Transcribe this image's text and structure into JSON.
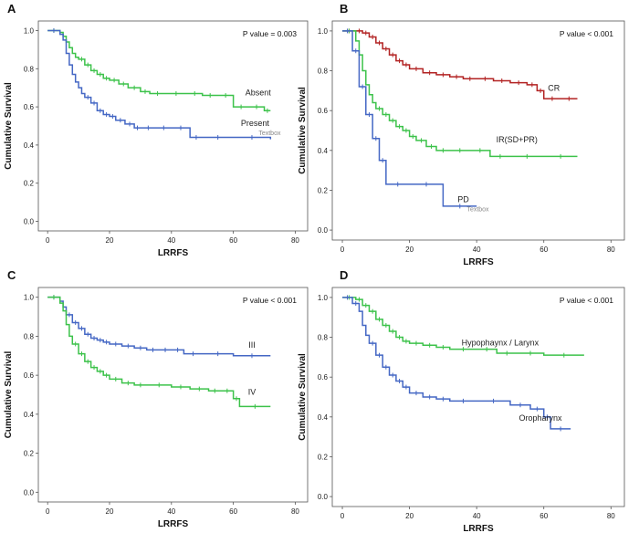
{
  "chart_data": [
    {
      "type": "line",
      "panel": "A",
      "title": "",
      "xlabel": "LRRFS",
      "ylabel": "Cumulative Survival",
      "xlim": [
        -3,
        84
      ],
      "ylim": [
        -0.05,
        1.05
      ],
      "xticks": [
        0,
        20,
        40,
        60,
        80
      ],
      "yticks": [
        "0.0",
        "0.2",
        "0.4",
        "0.6",
        "0.8",
        "1.0"
      ],
      "pvalue": "P value = 0.003",
      "extra_text": "Textbox",
      "series": [
        {
          "name": "Absent",
          "color": "#3cc24a",
          "x": [
            0,
            4,
            5,
            6,
            7,
            8,
            9,
            10,
            12,
            14,
            16,
            18,
            20,
            23,
            26,
            30,
            33,
            38,
            45,
            50,
            55,
            60,
            65,
            70,
            72
          ],
          "y": [
            1.0,
            0.99,
            0.97,
            0.94,
            0.91,
            0.88,
            0.86,
            0.85,
            0.82,
            0.79,
            0.77,
            0.75,
            0.74,
            0.72,
            0.7,
            0.68,
            0.67,
            0.67,
            0.67,
            0.66,
            0.66,
            0.6,
            0.6,
            0.58,
            0.58
          ]
        },
        {
          "name": "Present",
          "color": "#4467c4",
          "x": [
            0,
            4,
            5,
            6,
            7,
            8,
            9,
            10,
            11,
            12,
            14,
            16,
            18,
            20,
            22,
            25,
            28,
            30,
            35,
            40,
            46,
            50,
            60,
            72
          ],
          "y": [
            1.0,
            0.98,
            0.95,
            0.88,
            0.82,
            0.77,
            0.73,
            0.7,
            0.67,
            0.65,
            0.62,
            0.58,
            0.56,
            0.55,
            0.53,
            0.51,
            0.49,
            0.49,
            0.49,
            0.49,
            0.44,
            0.44,
            0.44,
            0.43
          ]
        }
      ],
      "labels": [
        {
          "text": "Absent",
          "x": 68,
          "y": 0.66
        },
        {
          "text": "Present",
          "x": 67,
          "y": 0.5
        }
      ]
    },
    {
      "type": "line",
      "panel": "B",
      "title": "",
      "xlabel": "LRRFS",
      "ylabel": "Cumulative Survival",
      "xlim": [
        -3,
        84
      ],
      "ylim": [
        -0.05,
        1.05
      ],
      "xticks": [
        0,
        20,
        40,
        60,
        80
      ],
      "yticks": [
        "0.0",
        "0.2",
        "0.4",
        "0.6",
        "0.8",
        "1.0"
      ],
      "pvalue": "P value < 0.001",
      "extra_text": "Textbox",
      "series": [
        {
          "name": "CR",
          "color": "#b22222",
          "x": [
            0,
            4,
            6,
            8,
            10,
            12,
            14,
            16,
            18,
            20,
            24,
            28,
            32,
            36,
            40,
            45,
            50,
            55,
            58,
            60,
            65,
            70
          ],
          "y": [
            1.0,
            1.0,
            0.99,
            0.97,
            0.94,
            0.91,
            0.88,
            0.85,
            0.83,
            0.81,
            0.79,
            0.78,
            0.77,
            0.76,
            0.76,
            0.75,
            0.74,
            0.73,
            0.7,
            0.66,
            0.66,
            0.66
          ]
        },
        {
          "name": "IR(SD+PR)",
          "color": "#3cc24a",
          "x": [
            0,
            4,
            5,
            6,
            7,
            8,
            9,
            10,
            12,
            14,
            16,
            18,
            20,
            22,
            25,
            28,
            32,
            38,
            44,
            50,
            60,
            70
          ],
          "y": [
            1.0,
            0.95,
            0.88,
            0.8,
            0.73,
            0.68,
            0.64,
            0.61,
            0.58,
            0.55,
            0.52,
            0.5,
            0.47,
            0.45,
            0.42,
            0.4,
            0.4,
            0.4,
            0.37,
            0.37,
            0.37,
            0.37
          ]
        },
        {
          "name": "PD",
          "color": "#4467c4",
          "x": [
            0,
            3,
            5,
            7,
            9,
            11,
            13,
            20,
            30,
            40
          ],
          "y": [
            1.0,
            0.9,
            0.72,
            0.58,
            0.46,
            0.35,
            0.23,
            0.23,
            0.12,
            0.12
          ]
        }
      ],
      "labels": [
        {
          "text": "CR",
          "x": 63,
          "y": 0.7
        },
        {
          "text": "IR(SD+PR)",
          "x": 52,
          "y": 0.44
        },
        {
          "text": "PD",
          "x": 36,
          "y": 0.14
        }
      ]
    },
    {
      "type": "line",
      "panel": "C",
      "title": "",
      "xlabel": "LRRFS",
      "ylabel": "Cumulative Survival",
      "xlim": [
        -3,
        84
      ],
      "ylim": [
        -0.05,
        1.05
      ],
      "xticks": [
        0,
        20,
        40,
        60,
        80
      ],
      "yticks": [
        "0.0",
        "0.2",
        "0.4",
        "0.6",
        "0.8",
        "1.0"
      ],
      "pvalue": "P value < 0.001",
      "extra_text": "",
      "series": [
        {
          "name": "III",
          "color": "#4467c4",
          "x": [
            0,
            4,
            5,
            6,
            8,
            10,
            12,
            14,
            16,
            18,
            20,
            24,
            28,
            32,
            36,
            40,
            44,
            50,
            60,
            72
          ],
          "y": [
            1.0,
            0.98,
            0.95,
            0.91,
            0.87,
            0.84,
            0.81,
            0.79,
            0.78,
            0.77,
            0.76,
            0.75,
            0.74,
            0.73,
            0.73,
            0.73,
            0.71,
            0.71,
            0.7,
            0.7
          ]
        },
        {
          "name": "IV",
          "color": "#3cc24a",
          "x": [
            0,
            4,
            5,
            6,
            7,
            8,
            10,
            12,
            14,
            16,
            18,
            20,
            24,
            28,
            32,
            40,
            46,
            52,
            56,
            60,
            62,
            72
          ],
          "y": [
            1.0,
            0.97,
            0.93,
            0.86,
            0.8,
            0.76,
            0.71,
            0.67,
            0.64,
            0.62,
            0.6,
            0.58,
            0.56,
            0.55,
            0.55,
            0.54,
            0.53,
            0.52,
            0.52,
            0.48,
            0.44,
            0.44
          ]
        }
      ],
      "labels": [
        {
          "text": "III",
          "x": 66,
          "y": 0.74
        },
        {
          "text": "IV",
          "x": 66,
          "y": 0.5
        }
      ]
    },
    {
      "type": "line",
      "panel": "D",
      "title": "",
      "xlabel": "LRRFS",
      "ylabel": "Cumulative Survival",
      "xlim": [
        -3,
        84
      ],
      "ylim": [
        -0.05,
        1.05
      ],
      "xticks": [
        0,
        20,
        40,
        60,
        80
      ],
      "yticks": [
        "0.0",
        "0.2",
        "0.4",
        "0.6",
        "0.8",
        "1.0"
      ],
      "pvalue": "P value < 0.001",
      "extra_text": "",
      "series": [
        {
          "name": "Hypophaynx / Larynx",
          "color": "#3cc24a",
          "x": [
            0,
            4,
            6,
            8,
            10,
            12,
            14,
            16,
            18,
            20,
            24,
            28,
            32,
            40,
            46,
            52,
            60,
            72
          ],
          "y": [
            1.0,
            0.99,
            0.96,
            0.93,
            0.89,
            0.86,
            0.83,
            0.8,
            0.78,
            0.77,
            0.76,
            0.75,
            0.74,
            0.74,
            0.72,
            0.72,
            0.71,
            0.71
          ]
        },
        {
          "name": "Oropharynx",
          "color": "#4467c4",
          "x": [
            0,
            3,
            5,
            6,
            7,
            8,
            10,
            12,
            14,
            16,
            18,
            20,
            24,
            28,
            32,
            40,
            50,
            56,
            60,
            62,
            68
          ],
          "y": [
            1.0,
            0.97,
            0.93,
            0.86,
            0.81,
            0.77,
            0.71,
            0.65,
            0.61,
            0.58,
            0.55,
            0.52,
            0.5,
            0.49,
            0.48,
            0.48,
            0.46,
            0.44,
            0.4,
            0.34,
            0.34
          ]
        }
      ],
      "labels": [
        {
          "text": "Hypophaynx / Larynx",
          "x": 47,
          "y": 0.76
        },
        {
          "text": "Oropharynx",
          "x": 59,
          "y": 0.38
        }
      ]
    }
  ]
}
